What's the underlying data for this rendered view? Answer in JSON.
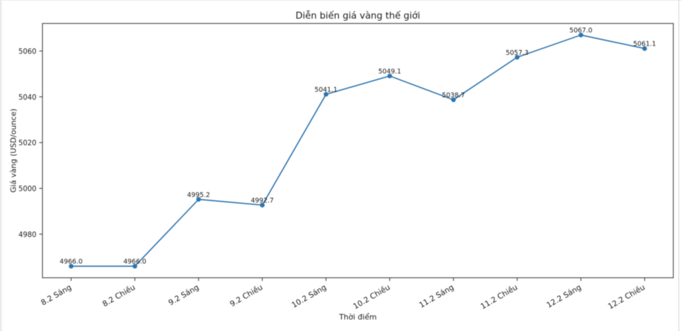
{
  "chart_data": {
    "type": "line",
    "title": "Diễn biến giá vàng thế giới",
    "xlabel": "Thời điểm",
    "ylabel": "Giá vàng (USD/ounce)",
    "categories": [
      "8.2 Sáng",
      "8.2 Chiều",
      "9.2 Sáng",
      "9.2 Chiều",
      "10.2 Sáng",
      "10.2 Chiều",
      "11.2 Sáng",
      "11.2 Chiều",
      "12.2 Sáng",
      "12.2 Chiều"
    ],
    "values": [
      4966.0,
      4966.0,
      4995.2,
      4992.7,
      5041.1,
      5049.1,
      5038.7,
      5057.3,
      5067.0,
      5061.1
    ],
    "point_labels": [
      "4966.0",
      "4966.0",
      "4995.2",
      "4992.7",
      "5041.1",
      "5049.1",
      "5038.7",
      "5057.3",
      "5067.0",
      "5061.1"
    ],
    "yticks": [
      4980,
      5000,
      5020,
      5040,
      5060
    ],
    "ylim": [
      4960.95,
      5072.05
    ],
    "xlim": [
      -0.45,
      9.45
    ],
    "x_tick_rotation_deg": 30,
    "grid": false,
    "legend": false,
    "line_color": "#2f76b0",
    "marker": "circle",
    "marker_color": "#2f76b0",
    "text_color": "#1c1c1c",
    "spine_color": "#3c3c3c",
    "background_color": "#ffffff"
  }
}
